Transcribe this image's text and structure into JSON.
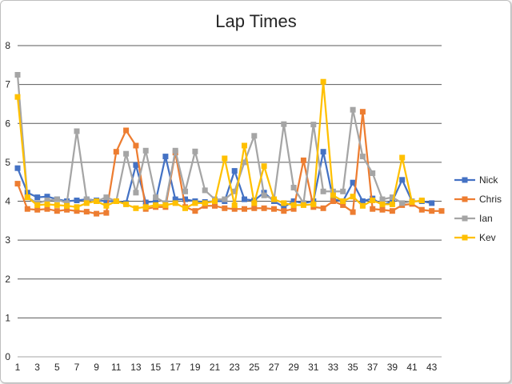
{
  "chart_data": {
    "type": "line",
    "title": "Lap Times",
    "xlabel": "",
    "ylabel": "",
    "ylim": [
      0,
      8
    ],
    "xlim": [
      1,
      44
    ],
    "y_ticks": [
      "0",
      "1",
      "2",
      "3",
      "4",
      "5",
      "6",
      "7",
      "8"
    ],
    "x_ticks": [
      "1",
      "3",
      "5",
      "7",
      "9",
      "11",
      "13",
      "15",
      "17",
      "19",
      "21",
      "23",
      "25",
      "27",
      "29",
      "31",
      "33",
      "35",
      "37",
      "39",
      "41",
      "43"
    ],
    "grid": "horizontal",
    "legend": "right",
    "series": [
      {
        "name": "Nick",
        "color": "#4472C4",
        "values": [
          4.85,
          4.22,
          4.1,
          4.12,
          4.05,
          4.0,
          4.02,
          4.05,
          4.02,
          4.0,
          4.0,
          3.95,
          4.93,
          3.97,
          4.0,
          5.15,
          4.05,
          4.05,
          4.0,
          3.98,
          4.0,
          4.0,
          4.78,
          4.05,
          4.02,
          4.22,
          4.0,
          3.85,
          4.0,
          3.95,
          4.0,
          5.27,
          4.05,
          4.0,
          4.48,
          4.0,
          4.07,
          3.9,
          4.0,
          4.55,
          4.0,
          4.0,
          3.95
        ]
      },
      {
        "name": "Chris",
        "color": "#ED7D31",
        "values": [
          4.45,
          3.8,
          3.78,
          3.8,
          3.75,
          3.78,
          3.75,
          3.73,
          3.68,
          3.7,
          5.27,
          5.82,
          5.43,
          3.8,
          3.85,
          3.85,
          5.25,
          3.85,
          3.75,
          3.88,
          3.88,
          3.82,
          3.8,
          3.8,
          3.82,
          3.82,
          3.8,
          3.75,
          3.8,
          5.05,
          3.85,
          3.82,
          4.0,
          3.9,
          3.72,
          6.3,
          3.8,
          3.78,
          3.75,
          3.9,
          3.93,
          3.78,
          3.75,
          3.75
        ]
      },
      {
        "name": "Ian",
        "color": "#A5A5A5",
        "values": [
          7.25,
          4.1,
          3.95,
          4.02,
          4.05,
          3.95,
          5.8,
          4.05,
          4.0,
          4.1,
          4.0,
          5.22,
          4.22,
          5.3,
          4.1,
          3.95,
          5.3,
          4.25,
          5.28,
          4.28,
          4.05,
          4.05,
          4.25,
          5.0,
          5.68,
          4.15,
          4.05,
          5.98,
          4.35,
          3.95,
          5.97,
          4.25,
          4.25,
          4.25,
          6.35,
          5.15,
          4.72,
          4.05,
          4.1,
          3.95,
          4.0
        ]
      },
      {
        "name": "Kev",
        "color": "#FFC000",
        "values": [
          6.68,
          4.1,
          3.9,
          3.92,
          3.9,
          3.88,
          3.85,
          3.95,
          4.0,
          3.88,
          4.0,
          3.92,
          3.82,
          3.85,
          3.9,
          3.9,
          3.95,
          3.82,
          3.95,
          3.95,
          4.0,
          5.1,
          3.9,
          5.43,
          3.95,
          4.9,
          4.05,
          3.95,
          3.9,
          3.9,
          3.92,
          7.07,
          4.15,
          4.0,
          4.12,
          3.88,
          4.02,
          3.92,
          3.92,
          5.12,
          3.98,
          4.02
        ]
      }
    ]
  }
}
